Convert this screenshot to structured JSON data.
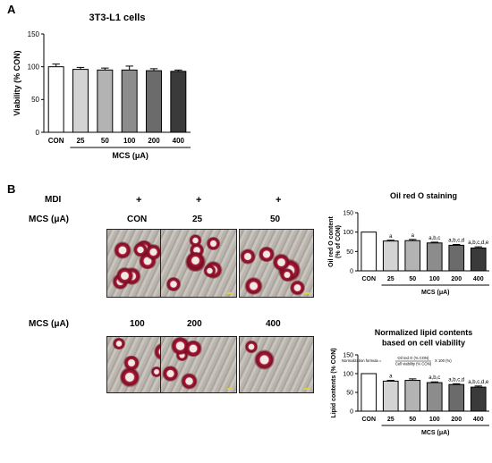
{
  "panel_a": {
    "letter": "A"
  },
  "panel_b": {
    "letter": "B",
    "mdi_label": "MDI",
    "mcs_label": "MCS (μA)",
    "plus": "+",
    "row1": [
      "CON",
      "25",
      "50"
    ],
    "row2": [
      "100",
      "200",
      "400"
    ],
    "micrographs": [
      {
        "name": "con",
        "cells": 10
      },
      {
        "name": "25",
        "cells": 8
      },
      {
        "name": "50",
        "cells": 7
      },
      {
        "name": "100",
        "cells": 6
      },
      {
        "name": "200",
        "cells": 5
      },
      {
        "name": "400",
        "cells": 2
      }
    ],
    "normalization_formula": {
      "prefix": "Normalization formula =",
      "numerator": "Oil red O (% CON)",
      "denominator": "Cell viability (% CON)",
      "suffix": "X 100 (%)"
    }
  },
  "colors": {
    "bar_fills": [
      "#ffffff",
      "#d3d3d3",
      "#b3b3b3",
      "#8c8c8c",
      "#6b6b6b",
      "#3a3a3a"
    ]
  },
  "chart_data": [
    {
      "name": "viability",
      "type": "bar",
      "title": "3T3-L1 cells",
      "xlabel": "MCS (μA)",
      "ylabel": "Viability (% CON)",
      "categories": [
        "CON",
        "25",
        "50",
        "100",
        "200",
        "400"
      ],
      "values": [
        100,
        96,
        95,
        95,
        94,
        93
      ],
      "errors": [
        4,
        3,
        3,
        6,
        3,
        2
      ],
      "ylim": [
        0,
        150
      ],
      "yticks": [
        0,
        50,
        100,
        150
      ],
      "annotations": [
        "",
        "",
        "",
        "",
        "",
        ""
      ],
      "xlabel_bar_from": "25"
    },
    {
      "name": "oil-red-o",
      "type": "bar",
      "title": "Oil red O staining",
      "xlabel": "MCS (μA)",
      "ylabel": "Oil red O content (% of CON)",
      "categories": [
        "CON",
        "25",
        "50",
        "100",
        "200",
        "400"
      ],
      "values": [
        100,
        77,
        78,
        72,
        66,
        59
      ],
      "errors": [
        0,
        2,
        3,
        2,
        2,
        3
      ],
      "ylim": [
        0,
        150
      ],
      "yticks": [
        0,
        50,
        100,
        150
      ],
      "annotations": [
        "",
        "a",
        "a",
        "a,b,c",
        "a,b,c,d",
        "a,b,c,d,e"
      ],
      "xlabel_bar_from": "25"
    },
    {
      "name": "normalized-lipid",
      "type": "bar",
      "title": "Normalized lipid contents based on cell viability",
      "xlabel": "MCS (μA)",
      "ylabel": "Lipid contents (% CON)",
      "categories": [
        "CON",
        "25",
        "50",
        "100",
        "200",
        "400"
      ],
      "values": [
        100,
        80,
        82,
        76,
        71,
        64
      ],
      "errors": [
        0,
        2,
        4,
        2,
        2,
        3
      ],
      "ylim": [
        0,
        150
      ],
      "yticks": [
        0,
        50,
        100,
        150
      ],
      "annotations": [
        "",
        "a",
        "",
        "a,b,c",
        "a,b,c,d",
        "a,b,c,d,e"
      ],
      "xlabel_bar_from": "25"
    }
  ]
}
